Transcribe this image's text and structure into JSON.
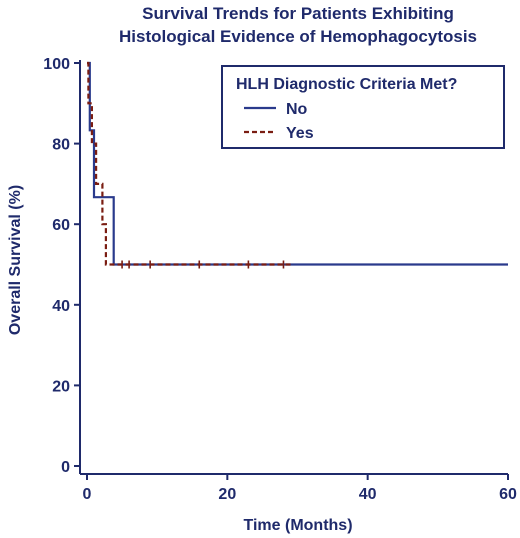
{
  "chart_data": {
    "type": "line",
    "title": [
      "Survival Trends for Patients Exhibiting",
      "Histological Evidence of Hemophagocytosis"
    ],
    "xlabel": "Time (Months)",
    "ylabel": "Overall Survival (%)",
    "xlim": [
      0,
      60
    ],
    "ylim": [
      0,
      100
    ],
    "xticks": [
      0,
      20,
      40,
      60
    ],
    "yticks": [
      0,
      20,
      40,
      60,
      80,
      100
    ],
    "grid": false,
    "legend": {
      "title": "HLH Diagnostic Criteria Met?",
      "placement": "top-right"
    },
    "series": [
      {
        "name": "No",
        "color": "#2a3a8c",
        "style": "solid",
        "steps": [
          [
            0,
            100
          ],
          [
            0.4,
            100
          ],
          [
            0.4,
            83.3
          ],
          [
            1.0,
            83.3
          ],
          [
            1.0,
            66.7
          ],
          [
            3.8,
            66.7
          ],
          [
            3.8,
            50
          ],
          [
            60,
            50
          ]
        ],
        "censor_marks": []
      },
      {
        "name": "Yes",
        "color": "#7a1d12",
        "style": "dashed",
        "steps": [
          [
            0,
            100
          ],
          [
            0.2,
            100
          ],
          [
            0.2,
            90
          ],
          [
            0.7,
            90
          ],
          [
            0.7,
            80
          ],
          [
            1.3,
            80
          ],
          [
            1.3,
            70
          ],
          [
            2.2,
            70
          ],
          [
            2.2,
            60
          ],
          [
            2.7,
            60
          ],
          [
            2.7,
            50
          ],
          [
            29,
            50
          ]
        ],
        "censor_marks": [
          5,
          6,
          9,
          16,
          23,
          28
        ]
      }
    ]
  }
}
